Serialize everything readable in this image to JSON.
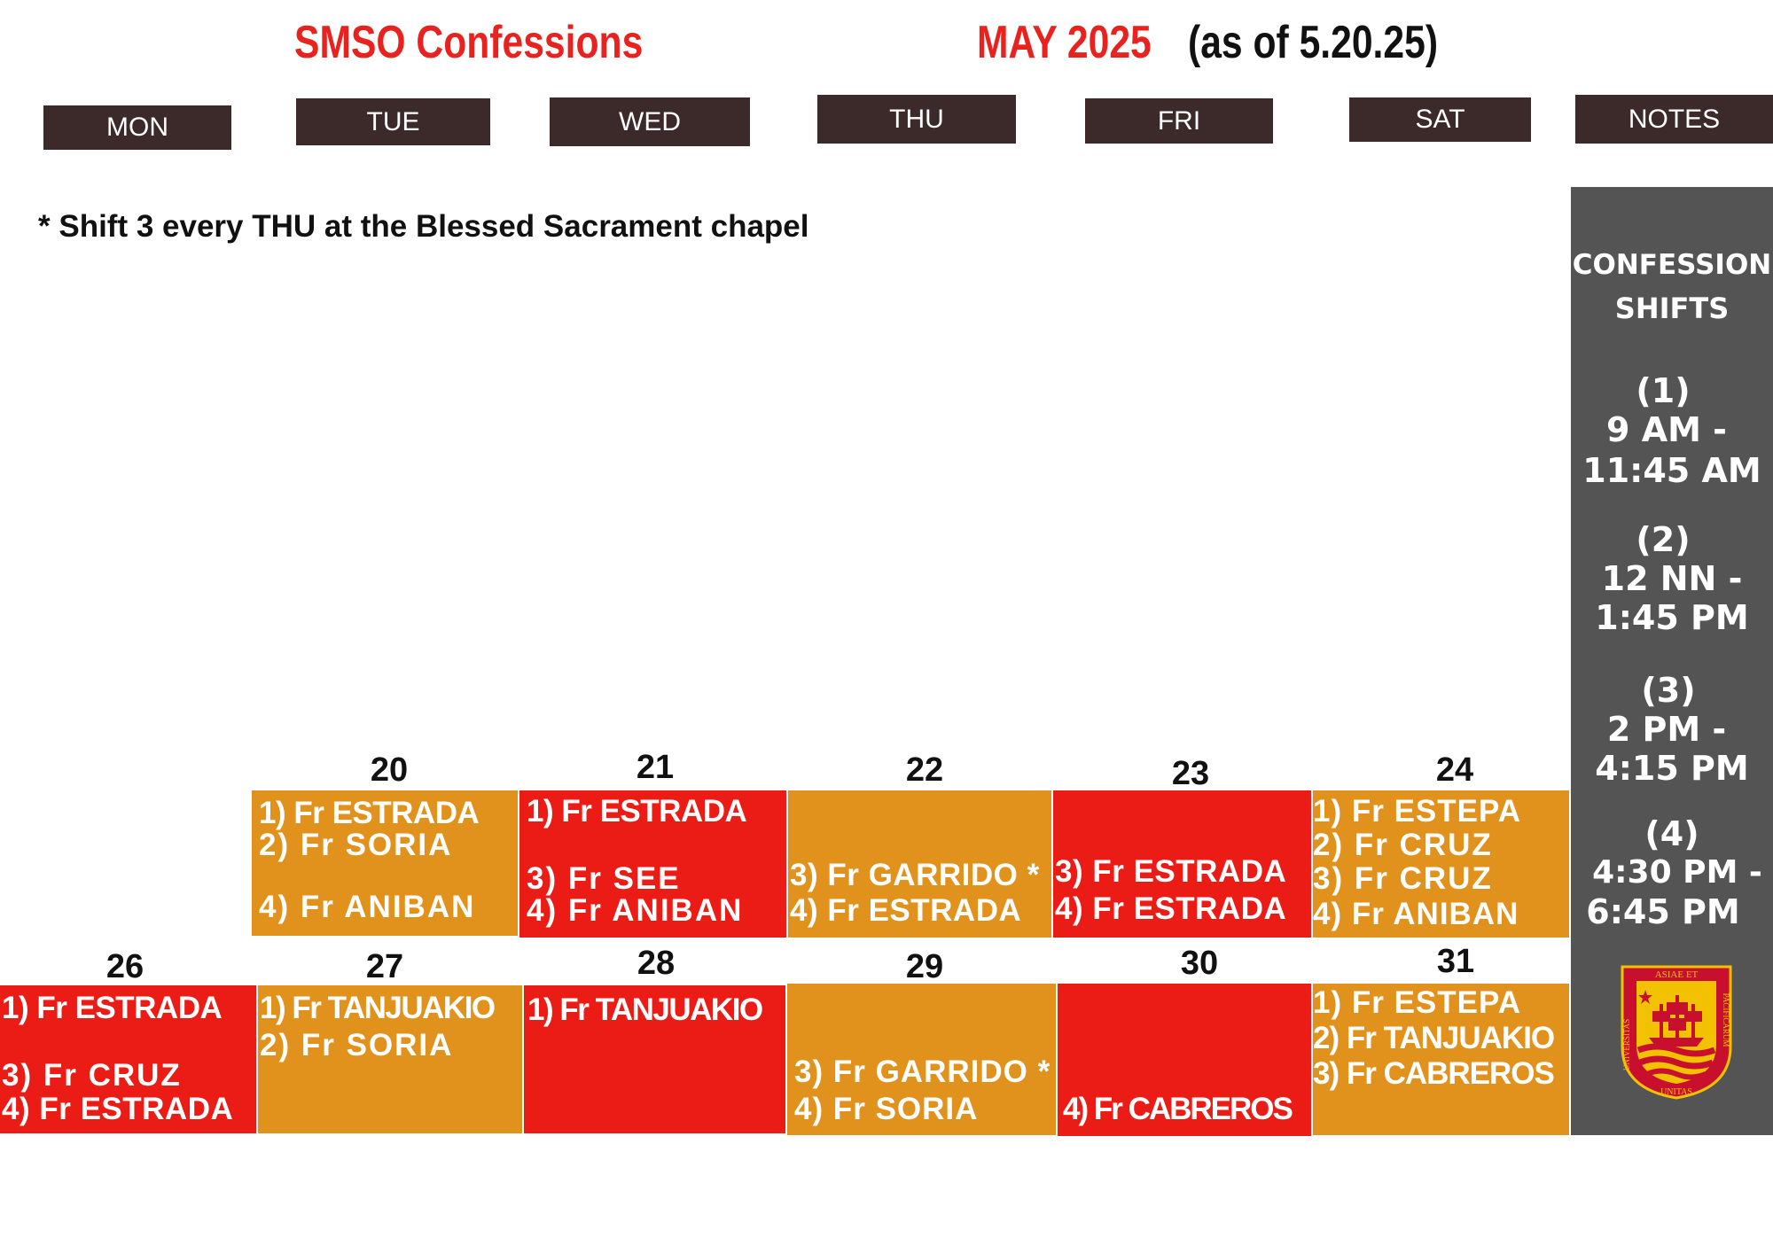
{
  "header": {
    "title": "SMSO Confessions",
    "month": "MAY 2025",
    "as_of": "(as of 5.20.25)"
  },
  "days": [
    "MON",
    "TUE",
    "WED",
    "THU",
    "FRI",
    "SAT",
    "NOTES"
  ],
  "note": "* Shift 3 every THU at the Blessed Sacrament chapel",
  "week1": [
    {
      "num": "20",
      "lines": [
        "1) Fr ESTRADA",
        "2) Fr SORIA",
        "4) Fr ANIBAN"
      ]
    },
    {
      "num": "21",
      "lines": [
        "1) Fr ESTRADA",
        "3) Fr SEE",
        "4) Fr ANIBAN"
      ]
    },
    {
      "num": "22",
      "lines": [
        "3) Fr GARRIDO *",
        "4) Fr ESTRADA"
      ]
    },
    {
      "num": "23",
      "lines": [
        "3) Fr ESTRADA",
        "4) Fr ESTRADA"
      ]
    },
    {
      "num": "24",
      "lines": [
        "1) Fr ESTEPA",
        "2) Fr CRUZ",
        "3) Fr CRUZ",
        "4) Fr ANIBAN"
      ]
    }
  ],
  "week2": [
    {
      "num": "26",
      "lines": [
        "1) Fr ESTRADA",
        "3) Fr CRUZ",
        "4) Fr ESTRADA"
      ]
    },
    {
      "num": "27",
      "lines": [
        "1) Fr TANJUAKIO",
        "2) Fr SORIA"
      ]
    },
    {
      "num": "28",
      "lines": [
        "1) Fr TANJUAKIO"
      ]
    },
    {
      "num": "29",
      "lines": [
        "3) Fr GARRIDO *",
        "4) Fr SORIA"
      ]
    },
    {
      "num": "30",
      "lines": [
        "4) Fr CABREROS"
      ]
    },
    {
      "num": "31",
      "lines": [
        "1) Fr ESTEPA",
        "2) Fr TANJUAKIO",
        "3) Fr CABREROS"
      ]
    }
  ],
  "notes": {
    "heading1": "CONFESSION",
    "heading2": "SHIFTS",
    "shifts": [
      {
        "n": "(1)",
        "a": "9 AM -",
        "b": "11:45 AM"
      },
      {
        "n": "(2)",
        "a": "12 NN -",
        "b": "1:45 PM"
      },
      {
        "n": "(3)",
        "a": "2 PM -",
        "b": "4:15 PM"
      },
      {
        "n": "(4)",
        "a": "4:30 PM -",
        "b": "6:45 PM"
      }
    ],
    "seal": {
      "top": "ASIAE ET",
      "left": "UNIVERSITAS",
      "right": "PACIFICARUM",
      "bottom": "UNITAS"
    }
  },
  "colors": {
    "red": "#ea1c15",
    "orange": "#e0921c",
    "header_brown": "#3b2a29",
    "notes_gray": "#545454",
    "title_red": "#e8231f"
  }
}
